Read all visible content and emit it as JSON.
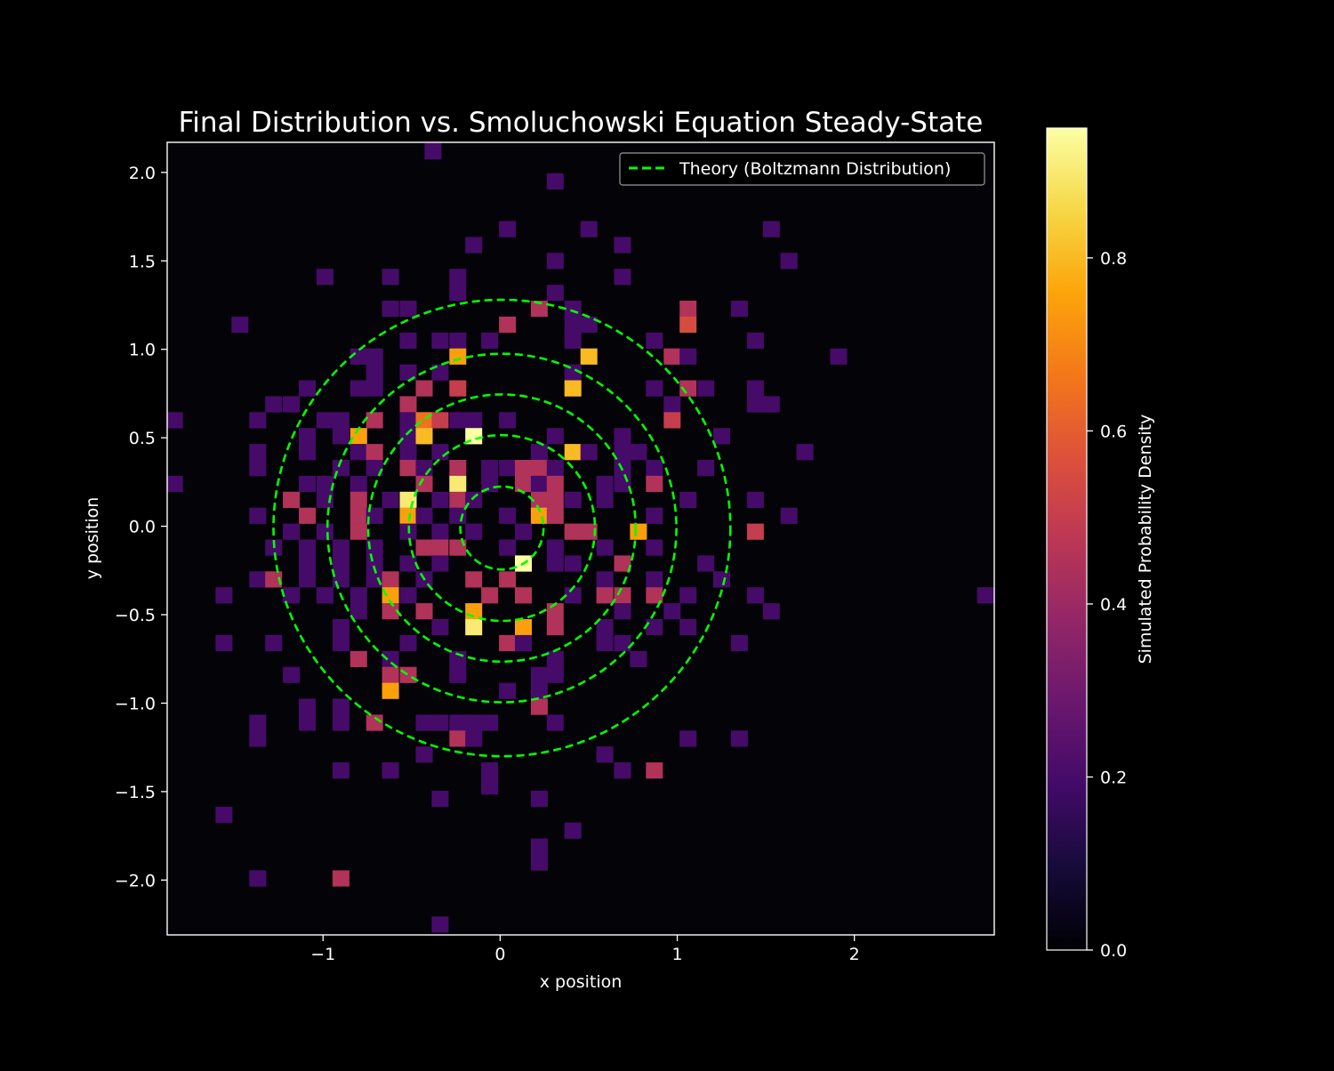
{
  "chart_data": {
    "type": "heatmap",
    "title": "Final Distribution vs. Smoluchowski Equation Steady-State",
    "xlabel": "x position",
    "ylabel": "y position",
    "xlim": [
      -1.88,
      2.79
    ],
    "ylim": [
      -2.31,
      2.17
    ],
    "x_ticks": [
      -1,
      0,
      1,
      2
    ],
    "y_ticks": [
      -2.0,
      -1.5,
      -1.0,
      -0.5,
      0.0,
      0.5,
      1.0,
      1.5,
      2.0
    ],
    "x_tick_labels": [
      "−1",
      "0",
      "1",
      "2"
    ],
    "y_tick_labels": [
      "−2.0",
      "−1.5",
      "−1.0",
      "−0.5",
      "0.0",
      "0.5",
      "1.0",
      "1.5",
      "2.0"
    ],
    "bin_size": [
      0.0934,
      0.0896
    ],
    "colorbar": {
      "label": "Simulated Probability Density",
      "range": [
        0.0,
        0.95
      ],
      "ticks": [
        0.0,
        0.2,
        0.4,
        0.6,
        0.8
      ],
      "tick_labels": [
        "0.0",
        "0.2",
        "0.4",
        "0.6",
        "0.8"
      ],
      "colormap": "inferno"
    },
    "legend": {
      "position": "top-right",
      "entries": [
        {
          "name": "Theory (Boltzmann Distribution)",
          "color": "#00ff00",
          "style": "dashed"
        }
      ]
    },
    "contours": {
      "series": "Theory (Boltzmann Distribution)",
      "color": "#00ff00",
      "center": [
        0.01,
        -0.01
      ],
      "radii": [
        0.235,
        0.525,
        0.755,
        0.985,
        1.29
      ]
    },
    "cells": [
      [
        -0.38,
        2.12,
        0.2
      ],
      [
        0.31,
        1.95,
        0.2
      ],
      [
        0.04,
        1.68,
        0.2
      ],
      [
        0.5,
        1.68,
        0.2
      ],
      [
        1.53,
        1.68,
        0.2
      ],
      [
        -0.15,
        1.59,
        0.2
      ],
      [
        0.69,
        1.59,
        0.2
      ],
      [
        0.31,
        1.5,
        0.2
      ],
      [
        1.63,
        1.5,
        0.2
      ],
      [
        -0.99,
        1.41,
        0.2
      ],
      [
        -0.62,
        1.41,
        0.2
      ],
      [
        -0.24,
        1.41,
        0.2
      ],
      [
        0.69,
        1.41,
        0.2
      ],
      [
        -0.24,
        1.32,
        0.2
      ],
      [
        0.31,
        1.32,
        0.2
      ],
      [
        -0.62,
        1.23,
        0.2
      ],
      [
        -0.52,
        1.23,
        0.2
      ],
      [
        0.22,
        1.23,
        0.45
      ],
      [
        0.41,
        1.23,
        0.2
      ],
      [
        1.06,
        1.23,
        0.45
      ],
      [
        1.35,
        1.23,
        0.2
      ],
      [
        -1.47,
        1.14,
        0.2
      ],
      [
        0.04,
        1.14,
        0.45
      ],
      [
        0.41,
        1.14,
        0.2
      ],
      [
        0.5,
        1.14,
        0.2
      ],
      [
        1.06,
        1.14,
        0.55
      ],
      [
        -0.52,
        1.05,
        0.2
      ],
      [
        -0.34,
        1.05,
        0.2
      ],
      [
        -0.24,
        1.05,
        0.2
      ],
      [
        -0.06,
        1.05,
        0.2
      ],
      [
        0.41,
        1.05,
        0.2
      ],
      [
        0.87,
        1.05,
        0.2
      ],
      [
        1.44,
        1.05,
        0.2
      ],
      [
        -0.8,
        0.96,
        0.2
      ],
      [
        -0.71,
        0.96,
        0.2
      ],
      [
        -0.24,
        0.96,
        0.75
      ],
      [
        0.5,
        0.96,
        0.8
      ],
      [
        0.97,
        0.96,
        0.45
      ],
      [
        1.06,
        0.96,
        0.2
      ],
      [
        1.91,
        0.96,
        0.2
      ],
      [
        -0.71,
        0.87,
        0.2
      ],
      [
        -0.52,
        0.87,
        0.2
      ],
      [
        -0.34,
        0.87,
        0.2
      ],
      [
        0.41,
        0.87,
        0.2
      ],
      [
        -1.09,
        0.78,
        0.2
      ],
      [
        -0.8,
        0.78,
        0.2
      ],
      [
        -0.71,
        0.78,
        0.2
      ],
      [
        -0.43,
        0.78,
        0.45
      ],
      [
        -0.24,
        0.78,
        0.5
      ],
      [
        0.41,
        0.78,
        0.8
      ],
      [
        0.87,
        0.78,
        0.2
      ],
      [
        1.06,
        0.78,
        0.45
      ],
      [
        1.16,
        0.78,
        0.2
      ],
      [
        1.44,
        0.78,
        0.2
      ],
      [
        -1.28,
        0.69,
        0.2
      ],
      [
        -1.18,
        0.69,
        0.2
      ],
      [
        -0.52,
        0.69,
        0.45
      ],
      [
        0.97,
        0.69,
        0.2
      ],
      [
        1.44,
        0.69,
        0.2
      ],
      [
        1.53,
        0.69,
        0.2
      ],
      [
        -1.37,
        0.6,
        0.2
      ],
      [
        -0.99,
        0.6,
        0.2
      ],
      [
        -0.9,
        0.6,
        0.2
      ],
      [
        -0.71,
        0.6,
        0.45
      ],
      [
        -0.52,
        0.6,
        0.2
      ],
      [
        -0.43,
        0.6,
        0.65
      ],
      [
        -0.34,
        0.6,
        0.5
      ],
      [
        -0.24,
        0.6,
        0.2
      ],
      [
        -0.15,
        0.6,
        0.2
      ],
      [
        0.04,
        0.6,
        0.2
      ],
      [
        0.97,
        0.6,
        0.5
      ],
      [
        -1.84,
        0.6,
        0.2
      ],
      [
        -1.09,
        0.51,
        0.2
      ],
      [
        -0.9,
        0.51,
        0.2
      ],
      [
        -0.8,
        0.51,
        0.75
      ],
      [
        -0.52,
        0.51,
        0.2
      ],
      [
        -0.43,
        0.51,
        0.8
      ],
      [
        -0.15,
        0.51,
        0.95
      ],
      [
        0.31,
        0.51,
        0.2
      ],
      [
        0.69,
        0.51,
        0.2
      ],
      [
        1.25,
        0.51,
        0.2
      ],
      [
        -1.37,
        0.42,
        0.2
      ],
      [
        -1.09,
        0.42,
        0.2
      ],
      [
        -0.8,
        0.42,
        0.2
      ],
      [
        -0.71,
        0.42,
        0.45
      ],
      [
        -0.52,
        0.42,
        0.2
      ],
      [
        -0.34,
        0.42,
        0.2
      ],
      [
        0.22,
        0.42,
        0.2
      ],
      [
        0.41,
        0.42,
        0.8
      ],
      [
        0.5,
        0.42,
        0.2
      ],
      [
        0.69,
        0.42,
        0.2
      ],
      [
        0.78,
        0.42,
        0.2
      ],
      [
        1.72,
        0.42,
        0.2
      ],
      [
        -1.37,
        0.33,
        0.2
      ],
      [
        -0.9,
        0.33,
        0.2
      ],
      [
        -0.71,
        0.33,
        0.2
      ],
      [
        -0.52,
        0.33,
        0.45
      ],
      [
        -0.43,
        0.33,
        0.2
      ],
      [
        -0.24,
        0.33,
        0.45
      ],
      [
        -0.06,
        0.33,
        0.2
      ],
      [
        0.04,
        0.33,
        0.2
      ],
      [
        0.13,
        0.33,
        0.45
      ],
      [
        0.22,
        0.33,
        0.45
      ],
      [
        0.31,
        0.33,
        0.2
      ],
      [
        0.69,
        0.33,
        0.2
      ],
      [
        0.87,
        0.33,
        0.2
      ],
      [
        1.16,
        0.33,
        0.2
      ],
      [
        -1.84,
        0.24,
        0.2
      ],
      [
        -1.09,
        0.24,
        0.2
      ],
      [
        -0.99,
        0.24,
        0.2
      ],
      [
        -0.8,
        0.24,
        0.2
      ],
      [
        -0.43,
        0.24,
        0.45
      ],
      [
        -0.24,
        0.24,
        0.9
      ],
      [
        -0.06,
        0.24,
        0.2
      ],
      [
        0.13,
        0.24,
        0.45
      ],
      [
        0.22,
        0.24,
        0.2
      ],
      [
        0.31,
        0.24,
        0.45
      ],
      [
        0.59,
        0.24,
        0.2
      ],
      [
        0.69,
        0.24,
        0.2
      ],
      [
        0.87,
        0.24,
        0.45
      ],
      [
        -1.18,
        0.15,
        0.45
      ],
      [
        -0.99,
        0.15,
        0.2
      ],
      [
        -0.8,
        0.15,
        0.45
      ],
      [
        -0.62,
        0.15,
        0.2
      ],
      [
        -0.52,
        0.15,
        0.9
      ],
      [
        -0.34,
        0.15,
        0.2
      ],
      [
        -0.24,
        0.15,
        0.45
      ],
      [
        -0.15,
        0.15,
        0.2
      ],
      [
        0.22,
        0.15,
        0.45
      ],
      [
        0.31,
        0.15,
        0.45
      ],
      [
        0.41,
        0.15,
        0.2
      ],
      [
        0.59,
        0.15,
        0.2
      ],
      [
        1.06,
        0.15,
        0.2
      ],
      [
        1.44,
        0.15,
        0.2
      ],
      [
        -1.37,
        0.06,
        0.2
      ],
      [
        -1.09,
        0.06,
        0.45
      ],
      [
        -0.8,
        0.06,
        0.45
      ],
      [
        -0.71,
        0.06,
        0.2
      ],
      [
        -0.52,
        0.06,
        0.75
      ],
      [
        -0.43,
        0.06,
        0.2
      ],
      [
        -0.24,
        0.06,
        0.2
      ],
      [
        0.04,
        0.06,
        0.2
      ],
      [
        0.22,
        0.06,
        0.75
      ],
      [
        0.31,
        0.06,
        0.45
      ],
      [
        0.87,
        0.06,
        0.2
      ],
      [
        1.63,
        0.06,
        0.2
      ],
      [
        -1.18,
        -0.03,
        0.2
      ],
      [
        -0.99,
        -0.03,
        0.2
      ],
      [
        -0.8,
        -0.03,
        0.45
      ],
      [
        -0.52,
        -0.03,
        0.2
      ],
      [
        -0.34,
        -0.03,
        0.2
      ],
      [
        -0.15,
        -0.03,
        0.2
      ],
      [
        0.13,
        -0.03,
        0.2
      ],
      [
        0.41,
        -0.03,
        0.45
      ],
      [
        0.5,
        -0.03,
        0.45
      ],
      [
        0.78,
        -0.03,
        0.75
      ],
      [
        1.44,
        -0.03,
        0.5
      ],
      [
        -1.28,
        -0.12,
        0.2
      ],
      [
        -1.09,
        -0.12,
        0.2
      ],
      [
        -0.9,
        -0.12,
        0.2
      ],
      [
        -0.71,
        -0.12,
        0.2
      ],
      [
        -0.43,
        -0.12,
        0.45
      ],
      [
        -0.34,
        -0.12,
        0.45
      ],
      [
        -0.24,
        -0.12,
        0.45
      ],
      [
        0.04,
        -0.12,
        0.2
      ],
      [
        0.31,
        -0.12,
        0.2
      ],
      [
        0.59,
        -0.12,
        0.2
      ],
      [
        0.87,
        -0.12,
        0.2
      ],
      [
        -1.09,
        -0.21,
        0.2
      ],
      [
        -0.9,
        -0.21,
        0.2
      ],
      [
        -0.71,
        -0.21,
        0.2
      ],
      [
        -0.52,
        -0.21,
        0.2
      ],
      [
        -0.34,
        -0.21,
        0.2
      ],
      [
        0.13,
        -0.21,
        0.95
      ],
      [
        0.31,
        -0.21,
        0.2
      ],
      [
        0.41,
        -0.21,
        0.2
      ],
      [
        0.69,
        -0.21,
        0.45
      ],
      [
        1.16,
        -0.21,
        0.2
      ],
      [
        -1.37,
        -0.3,
        0.2
      ],
      [
        -1.28,
        -0.3,
        0.45
      ],
      [
        -1.09,
        -0.3,
        0.2
      ],
      [
        -0.9,
        -0.3,
        0.2
      ],
      [
        -0.71,
        -0.3,
        0.2
      ],
      [
        -0.62,
        -0.3,
        0.45
      ],
      [
        -0.43,
        -0.3,
        0.2
      ],
      [
        -0.15,
        -0.3,
        0.45
      ],
      [
        0.04,
        -0.3,
        0.45
      ],
      [
        0.59,
        -0.3,
        0.2
      ],
      [
        0.87,
        -0.3,
        0.2
      ],
      [
        1.25,
        -0.3,
        0.2
      ],
      [
        -1.56,
        -0.39,
        0.2
      ],
      [
        -1.18,
        -0.39,
        0.2
      ],
      [
        -0.99,
        -0.39,
        0.2
      ],
      [
        -0.8,
        -0.39,
        0.2
      ],
      [
        -0.62,
        -0.39,
        0.75
      ],
      [
        -0.52,
        -0.39,
        0.2
      ],
      [
        -0.06,
        -0.39,
        0.45
      ],
      [
        0.13,
        -0.39,
        0.45
      ],
      [
        0.41,
        -0.39,
        0.2
      ],
      [
        0.59,
        -0.39,
        0.45
      ],
      [
        0.69,
        -0.39,
        0.45
      ],
      [
        0.87,
        -0.39,
        0.45
      ],
      [
        1.06,
        -0.39,
        0.2
      ],
      [
        1.44,
        -0.39,
        0.2
      ],
      [
        2.74,
        -0.39,
        0.2
      ],
      [
        -0.8,
        -0.48,
        0.2
      ],
      [
        -0.62,
        -0.48,
        0.45
      ],
      [
        -0.43,
        -0.48,
        0.45
      ],
      [
        -0.15,
        -0.48,
        0.75
      ],
      [
        0.31,
        -0.48,
        0.45
      ],
      [
        0.69,
        -0.48,
        0.2
      ],
      [
        0.97,
        -0.48,
        0.2
      ],
      [
        1.53,
        -0.48,
        0.2
      ],
      [
        -0.9,
        -0.57,
        0.2
      ],
      [
        -0.34,
        -0.57,
        0.2
      ],
      [
        -0.15,
        -0.57,
        0.9
      ],
      [
        0.13,
        -0.57,
        0.75
      ],
      [
        0.31,
        -0.57,
        0.45
      ],
      [
        0.59,
        -0.57,
        0.2
      ],
      [
        0.87,
        -0.57,
        0.2
      ],
      [
        1.06,
        -0.57,
        0.2
      ],
      [
        -1.56,
        -0.66,
        0.2
      ],
      [
        -1.28,
        -0.66,
        0.2
      ],
      [
        -0.9,
        -0.66,
        0.2
      ],
      [
        -0.52,
        -0.66,
        0.2
      ],
      [
        0.04,
        -0.66,
        0.45
      ],
      [
        0.13,
        -0.66,
        0.2
      ],
      [
        0.59,
        -0.66,
        0.2
      ],
      [
        0.69,
        -0.66,
        0.2
      ],
      [
        1.35,
        -0.66,
        0.2
      ],
      [
        -0.8,
        -0.75,
        0.45
      ],
      [
        -0.62,
        -0.75,
        0.2
      ],
      [
        -0.24,
        -0.75,
        0.2
      ],
      [
        0.31,
        -0.75,
        0.2
      ],
      [
        0.78,
        -0.75,
        0.2
      ],
      [
        -1.18,
        -0.84,
        0.2
      ],
      [
        -0.62,
        -0.84,
        0.45
      ],
      [
        -0.52,
        -0.84,
        0.45
      ],
      [
        -0.24,
        -0.84,
        0.2
      ],
      [
        0.22,
        -0.84,
        0.2
      ],
      [
        0.31,
        -0.84,
        0.2
      ],
      [
        -0.62,
        -0.93,
        0.75
      ],
      [
        0.04,
        -0.93,
        0.2
      ],
      [
        0.22,
        -0.93,
        0.2
      ],
      [
        -1.09,
        -1.02,
        0.2
      ],
      [
        -0.9,
        -1.02,
        0.2
      ],
      [
        0.22,
        -1.02,
        0.45
      ],
      [
        -1.09,
        -1.11,
        0.2
      ],
      [
        -0.9,
        -1.11,
        0.2
      ],
      [
        -0.71,
        -1.11,
        0.45
      ],
      [
        -0.43,
        -1.11,
        0.2
      ],
      [
        -0.34,
        -1.11,
        0.2
      ],
      [
        -0.24,
        -1.11,
        0.2
      ],
      [
        -0.15,
        -1.11,
        0.2
      ],
      [
        -0.06,
        -1.11,
        0.2
      ],
      [
        0.31,
        -1.11,
        0.2
      ],
      [
        -1.37,
        -1.2,
        0.2
      ],
      [
        -0.24,
        -1.2,
        0.45
      ],
      [
        -0.15,
        -1.2,
        0.2
      ],
      [
        1.06,
        -1.2,
        0.2
      ],
      [
        1.35,
        -1.2,
        0.2
      ],
      [
        -1.37,
        -1.11,
        0.2
      ],
      [
        -0.43,
        -1.29,
        0.2
      ],
      [
        0.59,
        -1.29,
        0.2
      ],
      [
        -0.9,
        -1.38,
        0.2
      ],
      [
        -0.62,
        -1.38,
        0.2
      ],
      [
        -0.06,
        -1.38,
        0.2
      ],
      [
        0.69,
        -1.38,
        0.2
      ],
      [
        0.87,
        -1.38,
        0.45
      ],
      [
        -0.06,
        -1.47,
        0.2
      ],
      [
        -0.34,
        -1.54,
        0.2
      ],
      [
        0.22,
        -1.54,
        0.2
      ],
      [
        -1.56,
        -1.63,
        0.2
      ],
      [
        0.41,
        -1.72,
        0.2
      ],
      [
        0.22,
        -1.81,
        0.2
      ],
      [
        0.22,
        -1.9,
        0.2
      ],
      [
        -1.37,
        -1.99,
        0.2
      ],
      [
        -0.9,
        -1.99,
        0.45
      ],
      [
        -0.34,
        -2.25,
        0.2
      ]
    ]
  }
}
